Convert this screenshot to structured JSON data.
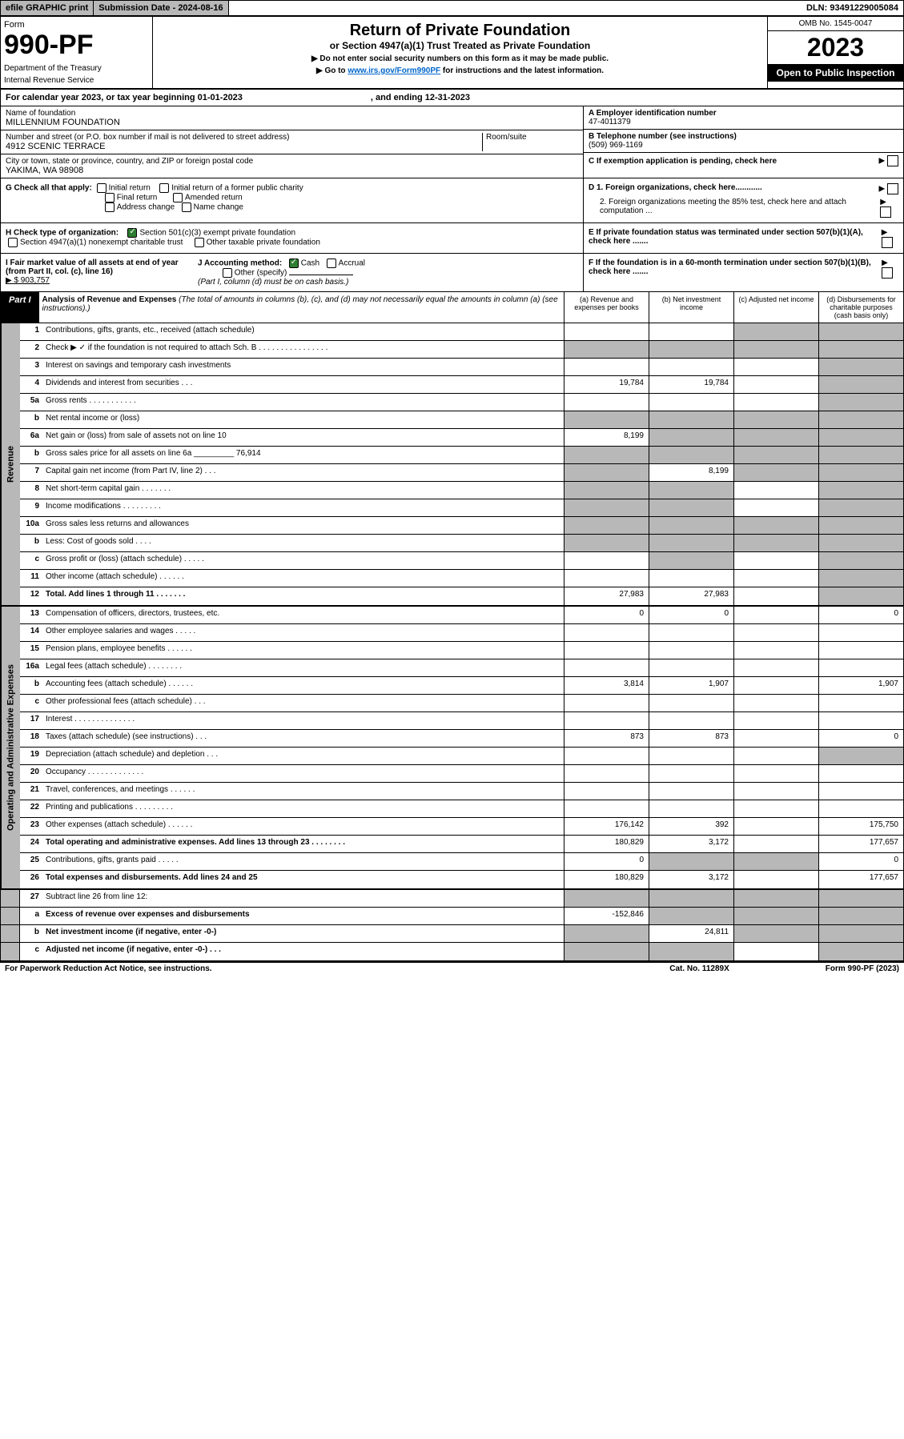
{
  "header": {
    "efile": "efile GRAPHIC print",
    "submission": "Submission Date - 2024-08-16",
    "dln": "DLN: 93491229005084",
    "form_label": "Form",
    "form_number": "990-PF",
    "dept": "Department of the Treasury",
    "irs": "Internal Revenue Service",
    "title": "Return of Private Foundation",
    "subtitle": "or Section 4947(a)(1) Trust Treated as Private Foundation",
    "instr1": "▶ Do not enter social security numbers on this form as it may be made public.",
    "instr2_pre": "▶ Go to ",
    "instr2_link": "www.irs.gov/Form990PF",
    "instr2_post": " for instructions and the latest information.",
    "omb": "OMB No. 1545-0047",
    "year": "2023",
    "open": "Open to Public Inspection"
  },
  "cal_year": {
    "text": "For calendar year 2023, or tax year beginning 01-01-2023",
    "ending": ", and ending 12-31-2023"
  },
  "org": {
    "name_lbl": "Name of foundation",
    "name": "MILLENNIUM FOUNDATION",
    "addr_lbl": "Number and street (or P.O. box number if mail is not delivered to street address)",
    "room_lbl": "Room/suite",
    "addr": "4912 SCENIC TERRACE",
    "city_lbl": "City or town, state or province, country, and ZIP or foreign postal code",
    "city": "YAKIMA, WA  98908",
    "ein_lbl": "A Employer identification number",
    "ein": "47-4011379",
    "phone_lbl": "B Telephone number (see instructions)",
    "phone": "(509) 969-1169",
    "c_lbl": "C If exemption application is pending, check here"
  },
  "checks": {
    "g_lbl": "G Check all that apply:",
    "g1": "Initial return",
    "g2": "Initial return of a former public charity",
    "g3": "Final return",
    "g4": "Amended return",
    "g5": "Address change",
    "g6": "Name change",
    "h_lbl": "H Check type of organization:",
    "h1": "Section 501(c)(3) exempt private foundation",
    "h2": "Section 4947(a)(1) nonexempt charitable trust",
    "h3": "Other taxable private foundation",
    "i_lbl": "I Fair market value of all assets at end of year (from Part II, col. (c), line 16)",
    "i_val": "▶ $  903,757",
    "j_lbl": "J Accounting method:",
    "j1": "Cash",
    "j2": "Accrual",
    "j3": "Other (specify)",
    "j_note": "(Part I, column (d) must be on cash basis.)",
    "d1": "D 1. Foreign organizations, check here............",
    "d2": "2. Foreign organizations meeting the 85% test, check here and attach computation ...",
    "e": "E  If private foundation status was terminated under section 507(b)(1)(A), check here .......",
    "f": "F  If the foundation is in a 60-month termination under section 507(b)(1)(B), check here ......."
  },
  "part1": {
    "label": "Part I",
    "desc_title": "Analysis of Revenue and Expenses",
    "desc_note": " (The total of amounts in columns (b), (c), and (d) may not necessarily equal the amounts in column (a) (see instructions).)",
    "col_a": "(a) Revenue and expenses per books",
    "col_b": "(b) Net investment income",
    "col_c": "(c) Adjusted net income",
    "col_d": "(d) Disbursements for charitable purposes (cash basis only)"
  },
  "sections": {
    "revenue": "Revenue",
    "expenses": "Operating and Administrative Expenses"
  },
  "rows": [
    {
      "n": "1",
      "d": "Contributions, gifts, grants, etc., received (attach schedule)",
      "a": "",
      "b": "",
      "c": "s",
      "dd": "s"
    },
    {
      "n": "2",
      "d": "Check ▶ ✓ if the foundation is not required to attach Sch. B  .  .  .  .  .  .  .  .  .  .  .  .  .  .  .  .",
      "a": "s",
      "b": "s",
      "c": "s",
      "dd": "s"
    },
    {
      "n": "3",
      "d": "Interest on savings and temporary cash investments",
      "a": "",
      "b": "",
      "c": "",
      "dd": "s"
    },
    {
      "n": "4",
      "d": "Dividends and interest from securities  .  .  .",
      "a": "19,784",
      "b": "19,784",
      "c": "",
      "dd": "s"
    },
    {
      "n": "5a",
      "d": "Gross rents  .  .  .  .  .  .  .  .  .  .  .",
      "a": "",
      "b": "",
      "c": "",
      "dd": "s"
    },
    {
      "n": "b",
      "d": "Net rental income or (loss)  ",
      "a": "s",
      "b": "s",
      "c": "s",
      "dd": "s"
    },
    {
      "n": "6a",
      "d": "Net gain or (loss) from sale of assets not on line 10",
      "a": "8,199",
      "b": "s",
      "c": "s",
      "dd": "s"
    },
    {
      "n": "b",
      "d": "Gross sales price for all assets on line 6a _________ 76,914",
      "a": "s",
      "b": "s",
      "c": "s",
      "dd": "s"
    },
    {
      "n": "7",
      "d": "Capital gain net income (from Part IV, line 2)  .  .  .",
      "a": "s",
      "b": "8,199",
      "c": "s",
      "dd": "s"
    },
    {
      "n": "8",
      "d": "Net short-term capital gain  .  .  .  .  .  .  .",
      "a": "s",
      "b": "s",
      "c": "",
      "dd": "s"
    },
    {
      "n": "9",
      "d": "Income modifications  .  .  .  .  .  .  .  .  .",
      "a": "s",
      "b": "s",
      "c": "",
      "dd": "s"
    },
    {
      "n": "10a",
      "d": "Gross sales less returns and allowances",
      "a": "s",
      "b": "s",
      "c": "s",
      "dd": "s"
    },
    {
      "n": "b",
      "d": "Less: Cost of goods sold  .  .  .  .",
      "a": "s",
      "b": "s",
      "c": "s",
      "dd": "s"
    },
    {
      "n": "c",
      "d": "Gross profit or (loss) (attach schedule)  .  .  .  .  .",
      "a": "",
      "b": "s",
      "c": "",
      "dd": "s"
    },
    {
      "n": "11",
      "d": "Other income (attach schedule)  .  .  .  .  .  .",
      "a": "",
      "b": "",
      "c": "",
      "dd": "s"
    },
    {
      "n": "12",
      "d": "Total. Add lines 1 through 11  .  .  .  .  .  .  .",
      "a": "27,983",
      "b": "27,983",
      "c": "",
      "dd": "s",
      "bold": true
    }
  ],
  "exp_rows": [
    {
      "n": "13",
      "d": "Compensation of officers, directors, trustees, etc.",
      "a": "0",
      "b": "0",
      "c": "",
      "dd": "0"
    },
    {
      "n": "14",
      "d": "Other employee salaries and wages  .  .  .  .  .",
      "a": "",
      "b": "",
      "c": "",
      "dd": ""
    },
    {
      "n": "15",
      "d": "Pension plans, employee benefits  .  .  .  .  .  .",
      "a": "",
      "b": "",
      "c": "",
      "dd": ""
    },
    {
      "n": "16a",
      "d": "Legal fees (attach schedule)  .  .  .  .  .  .  .  .",
      "a": "",
      "b": "",
      "c": "",
      "dd": ""
    },
    {
      "n": "b",
      "d": "Accounting fees (attach schedule)  .  .  .  .  .  .",
      "a": "3,814",
      "b": "1,907",
      "c": "",
      "dd": "1,907"
    },
    {
      "n": "c",
      "d": "Other professional fees (attach schedule)  .  .  .",
      "a": "",
      "b": "",
      "c": "",
      "dd": ""
    },
    {
      "n": "17",
      "d": "Interest  .  .  .  .  .  .  .  .  .  .  .  .  .  .",
      "a": "",
      "b": "",
      "c": "",
      "dd": ""
    },
    {
      "n": "18",
      "d": "Taxes (attach schedule) (see instructions)  .  .  .",
      "a": "873",
      "b": "873",
      "c": "",
      "dd": "0"
    },
    {
      "n": "19",
      "d": "Depreciation (attach schedule) and depletion  .  .  .",
      "a": "",
      "b": "",
      "c": "",
      "dd": "s"
    },
    {
      "n": "20",
      "d": "Occupancy  .  .  .  .  .  .  .  .  .  .  .  .  .",
      "a": "",
      "b": "",
      "c": "",
      "dd": ""
    },
    {
      "n": "21",
      "d": "Travel, conferences, and meetings  .  .  .  .  .  .",
      "a": "",
      "b": "",
      "c": "",
      "dd": ""
    },
    {
      "n": "22",
      "d": "Printing and publications  .  .  .  .  .  .  .  .  .",
      "a": "",
      "b": "",
      "c": "",
      "dd": ""
    },
    {
      "n": "23",
      "d": "Other expenses (attach schedule)  .  .  .  .  .  .",
      "a": "176,142",
      "b": "392",
      "c": "",
      "dd": "175,750"
    },
    {
      "n": "24",
      "d": "Total operating and administrative expenses. Add lines 13 through 23  .  .  .  .  .  .  .  .",
      "a": "180,829",
      "b": "3,172",
      "c": "",
      "dd": "177,657",
      "bold": true
    },
    {
      "n": "25",
      "d": "Contributions, gifts, grants paid  .  .  .  .  .",
      "a": "0",
      "b": "s",
      "c": "s",
      "dd": "0"
    },
    {
      "n": "26",
      "d": "Total expenses and disbursements. Add lines 24 and 25",
      "a": "180,829",
      "b": "3,172",
      "c": "",
      "dd": "177,657",
      "bold": true
    }
  ],
  "bottom_rows": [
    {
      "n": "27",
      "d": "Subtract line 26 from line 12:",
      "a": "s",
      "b": "s",
      "c": "s",
      "dd": "s"
    },
    {
      "n": "a",
      "d": "Excess of revenue over expenses and disbursements",
      "a": "-152,846",
      "b": "s",
      "c": "s",
      "dd": "s",
      "bold": true
    },
    {
      "n": "b",
      "d": "Net investment income (if negative, enter -0-)",
      "a": "s",
      "b": "24,811",
      "c": "s",
      "dd": "s",
      "bold": true
    },
    {
      "n": "c",
      "d": "Adjusted net income (if negative, enter -0-)  .  .  .",
      "a": "s",
      "b": "s",
      "c": "",
      "dd": "s",
      "bold": true
    }
  ],
  "footer": {
    "paperwork": "For Paperwork Reduction Act Notice, see instructions.",
    "cat": "Cat. No. 11289X",
    "form": "Form 990-PF (2023)"
  }
}
